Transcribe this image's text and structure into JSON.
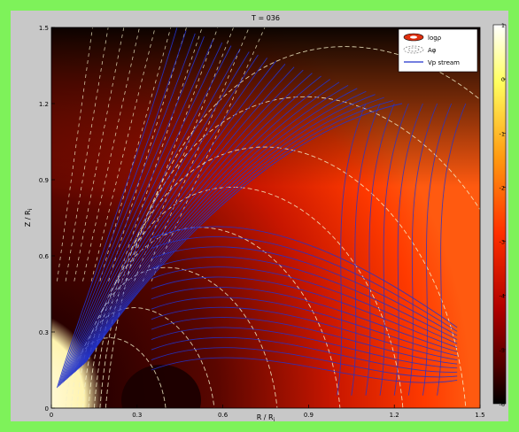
{
  "chart_data": {
    "type": "heatmap",
    "title": "T = 036",
    "xlabel": "R / R",
    "xlabel_sub": "i",
    "ylabel": "Z / R",
    "ylabel_sub": "i",
    "xlim": [
      0,
      1.5
    ],
    "ylim": [
      0,
      1.5
    ],
    "x_ticks": [
      "0",
      "0.3",
      "0.6",
      "0.9",
      "1.2",
      "1.5"
    ],
    "y_ticks": [
      "0",
      "0.3",
      "0.6",
      "0.9",
      "1.2",
      "1.5"
    ],
    "colorbar": {
      "range": [
        -6,
        1
      ],
      "ticks": [
        "1",
        "0",
        "-1",
        "-2",
        "-3",
        "-4",
        "-5",
        "-6"
      ],
      "colormap": "hot"
    },
    "legend": {
      "position": "top-right",
      "entries": [
        {
          "label": "logρ",
          "style": "filled-contour",
          "color": "#e03010"
        },
        {
          "label": "Aφ",
          "style": "dashed-contour",
          "color": "#ffffff"
        },
        {
          "label": "Vp stream",
          "style": "line",
          "color": "#2233cc"
        }
      ]
    },
    "layers": {
      "field": "log density (logρ)",
      "contours": "Aφ (dashed)",
      "streamlines": "poloidal velocity (Vp stream)"
    },
    "grid": false
  }
}
